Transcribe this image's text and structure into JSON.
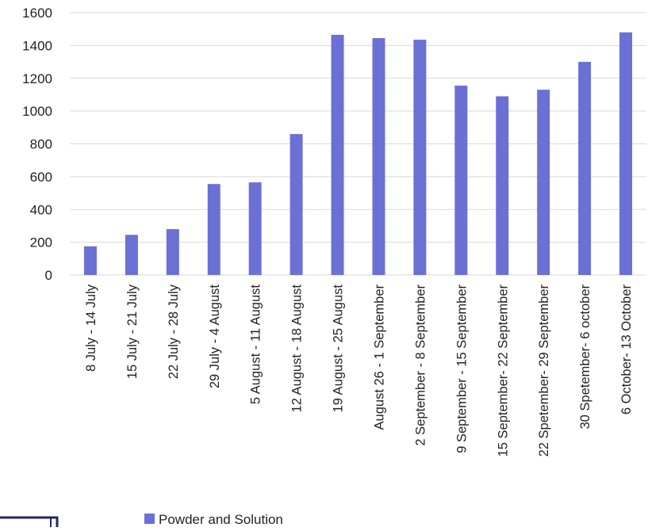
{
  "chart_data": {
    "type": "bar",
    "title": "",
    "xlabel": "",
    "ylabel": "",
    "ylim": [
      0,
      1600
    ],
    "yticks": [
      0,
      200,
      400,
      600,
      800,
      1000,
      1200,
      1400,
      1600
    ],
    "grid": true,
    "legend_position": "bottom",
    "categories": [
      "8 July - 14 July",
      "15 July - 21 July",
      "22 July - 28 July",
      "29 July  - 4 August",
      "5 August  - 11 August",
      "12 August - 18 August",
      "19 August - 25 August",
      "August 26 - 1 September",
      "2 September  - 8 September",
      "9 September - 15 September",
      "15 September- 22 September",
      "22 Spetember- 29 September",
      "30 Spetember- 6 october",
      "6 October- 13 October"
    ],
    "series": [
      {
        "name": "Powder and Solution",
        "color": "#6b70d4",
        "values": [
          175,
          245,
          280,
          555,
          565,
          860,
          1465,
          1445,
          1435,
          1155,
          1090,
          1130,
          1300,
          1480
        ]
      }
    ]
  }
}
